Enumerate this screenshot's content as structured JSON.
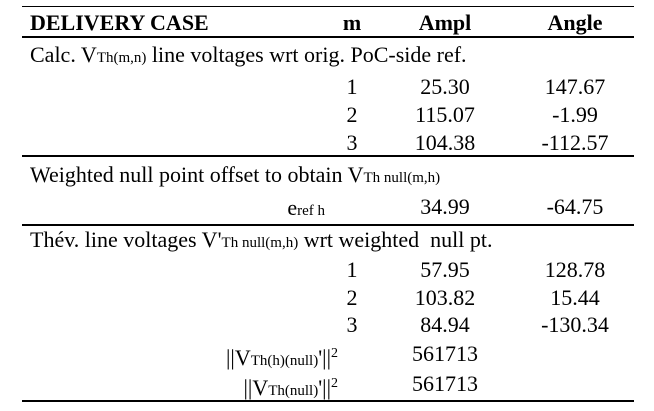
{
  "header": {
    "title": "DELIVERY CASE",
    "m": "m",
    "ampl": "Ampl",
    "angle": "Angle"
  },
  "section1": {
    "title": [
      "Calc. V",
      "Th(m,n)",
      " line voltages wrt orig. PoC-side ref."
    ],
    "rows": [
      [
        "1",
        "25.30",
        "147.67"
      ],
      [
        "2",
        "115.07",
        "-1.99"
      ],
      [
        "3",
        "104.38",
        "-112.57"
      ]
    ]
  },
  "section2": {
    "title": [
      "Weighted null point offset to obtain V",
      "Th null(m,h)"
    ],
    "label": [
      "e",
      "ref h"
    ],
    "ampl": "34.99",
    "angle": "-64.75"
  },
  "section3": {
    "title": [
      "Thév. line voltages V'",
      "Th null(m,h)",
      " wrt weighted  null pt."
    ],
    "rows": [
      [
        "1",
        "57.95",
        "128.78"
      ],
      [
        "2",
        "103.82",
        "15.44"
      ],
      [
        "3",
        "84.94",
        "-130.34"
      ]
    ],
    "norms": [
      {
        "label": [
          "||V",
          "Th(h)(null)",
          "'||",
          "2"
        ],
        "value": "561713"
      },
      {
        "label": [
          "||V",
          "Th(null)",
          "'||",
          "2"
        ],
        "value": "561713"
      }
    ]
  }
}
